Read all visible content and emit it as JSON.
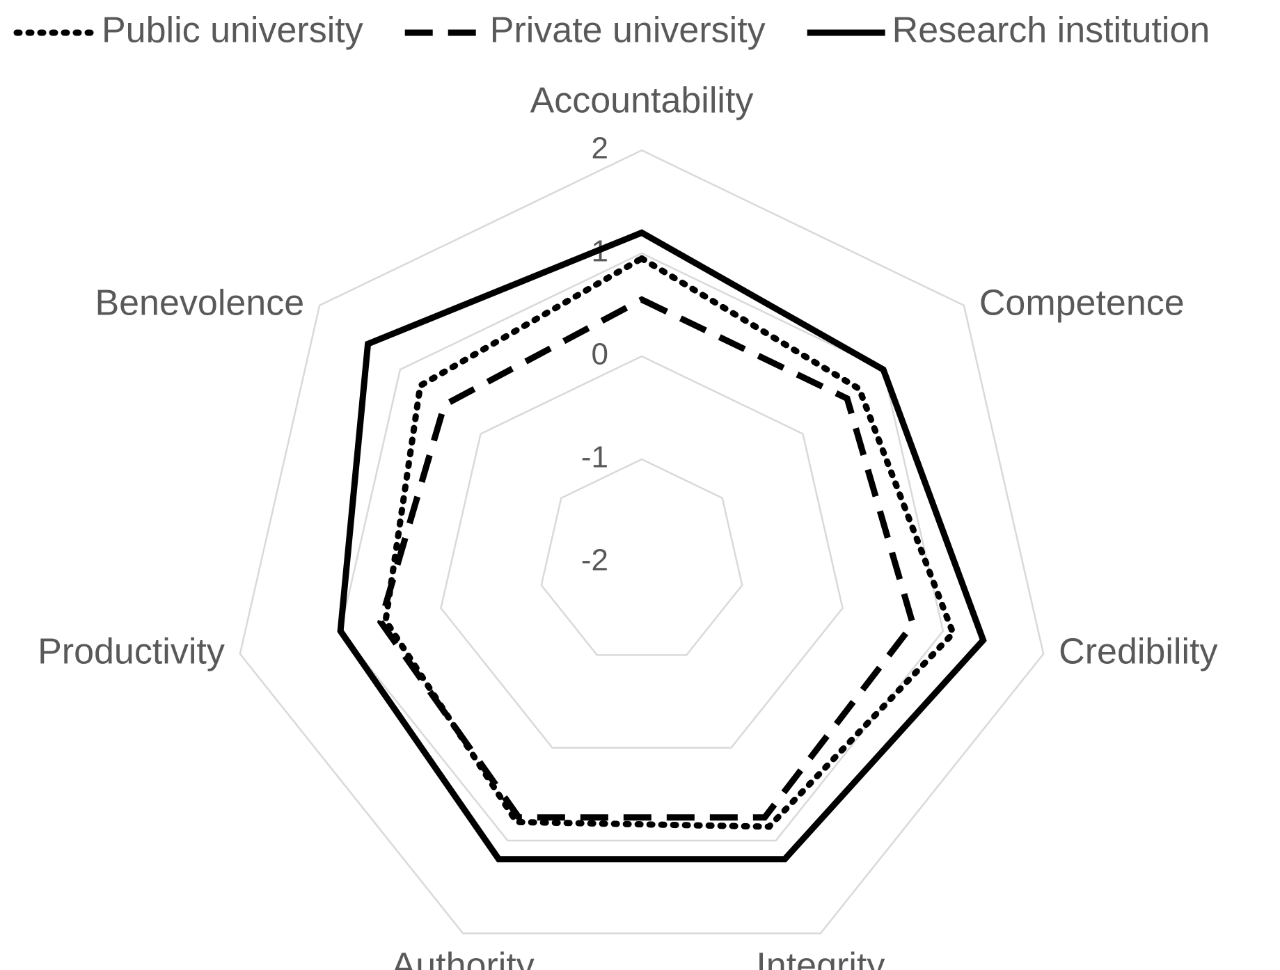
{
  "chart_data": {
    "type": "radar",
    "categories": [
      "Accountability",
      "Competence",
      "Credibility",
      "Integrity",
      "Authority",
      "Productivity",
      "Benevolence"
    ],
    "series": [
      {
        "name": "Public university",
        "color": "#000000",
        "dash": "dotted",
        "values": [
          0.95,
          0.7,
          1.1,
          0.85,
          0.8,
          0.55,
          0.75
        ]
      },
      {
        "name": "Private university",
        "color": "#000000",
        "dash": "dashed",
        "values": [
          0.55,
          0.55,
          0.7,
          0.75,
          0.75,
          0.6,
          0.45
        ]
      },
      {
        "name": "Research institution",
        "color": "#000000",
        "dash": "solid",
        "values": [
          1.2,
          1.0,
          1.4,
          1.2,
          1.2,
          1.0,
          1.4
        ]
      }
    ],
    "ylim": [
      -2,
      2
    ],
    "yticks": [
      -2,
      -1,
      0,
      1,
      2
    ],
    "grid": true,
    "legend": "top"
  }
}
